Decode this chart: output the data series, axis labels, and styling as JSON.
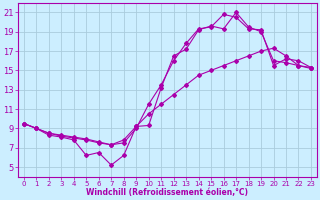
{
  "background_color": "#cceeff",
  "grid_color": "#aaccdd",
  "line_color": "#aa00aa",
  "xlabel": "Windchill (Refroidissement éolien,°C)",
  "xlim": [
    -0.5,
    23.5
  ],
  "ylim": [
    4,
    22
  ],
  "xticks": [
    0,
    1,
    2,
    3,
    4,
    5,
    6,
    7,
    8,
    9,
    10,
    11,
    12,
    13,
    14,
    15,
    16,
    17,
    18,
    19,
    20,
    21,
    22,
    23
  ],
  "yticks": [
    5,
    7,
    9,
    11,
    13,
    15,
    17,
    19,
    21
  ],
  "line1_x": [
    0,
    1,
    2,
    3,
    4,
    5,
    6,
    7,
    8,
    9,
    10,
    11,
    12,
    13,
    14,
    15,
    16,
    17,
    18,
    19,
    20,
    21,
    22,
    23
  ],
  "line1_y": [
    9.5,
    9.0,
    8.5,
    8.2,
    8.0,
    7.8,
    7.5,
    7.3,
    7.8,
    9.2,
    10.5,
    11.5,
    12.5,
    13.5,
    14.5,
    15.0,
    15.5,
    16.0,
    16.5,
    17.0,
    17.3,
    16.5,
    15.5,
    15.2
  ],
  "line2_x": [
    0,
    1,
    2,
    3,
    4,
    5,
    6,
    7,
    8,
    9,
    10,
    11,
    12,
    13,
    14,
    15,
    16,
    17,
    18,
    19,
    20,
    21,
    22,
    23
  ],
  "line2_y": [
    9.5,
    9.0,
    8.5,
    8.3,
    8.1,
    7.9,
    7.6,
    7.3,
    7.5,
    9.0,
    11.5,
    13.5,
    16.0,
    17.8,
    19.3,
    19.5,
    20.8,
    20.5,
    19.3,
    19.2,
    15.5,
    16.2,
    16.0,
    15.3
  ],
  "line3_x": [
    0,
    1,
    2,
    3,
    4,
    5,
    6,
    7,
    8,
    9,
    10,
    11,
    12,
    13,
    14,
    15,
    16,
    17,
    18,
    19,
    20,
    21,
    22,
    23
  ],
  "line3_y": [
    9.5,
    9.0,
    8.3,
    8.1,
    7.8,
    6.2,
    6.5,
    5.2,
    6.2,
    9.2,
    9.3,
    13.2,
    16.5,
    17.2,
    19.2,
    19.6,
    19.3,
    21.0,
    19.5,
    19.0,
    16.0,
    15.8,
    15.5,
    15.3
  ]
}
